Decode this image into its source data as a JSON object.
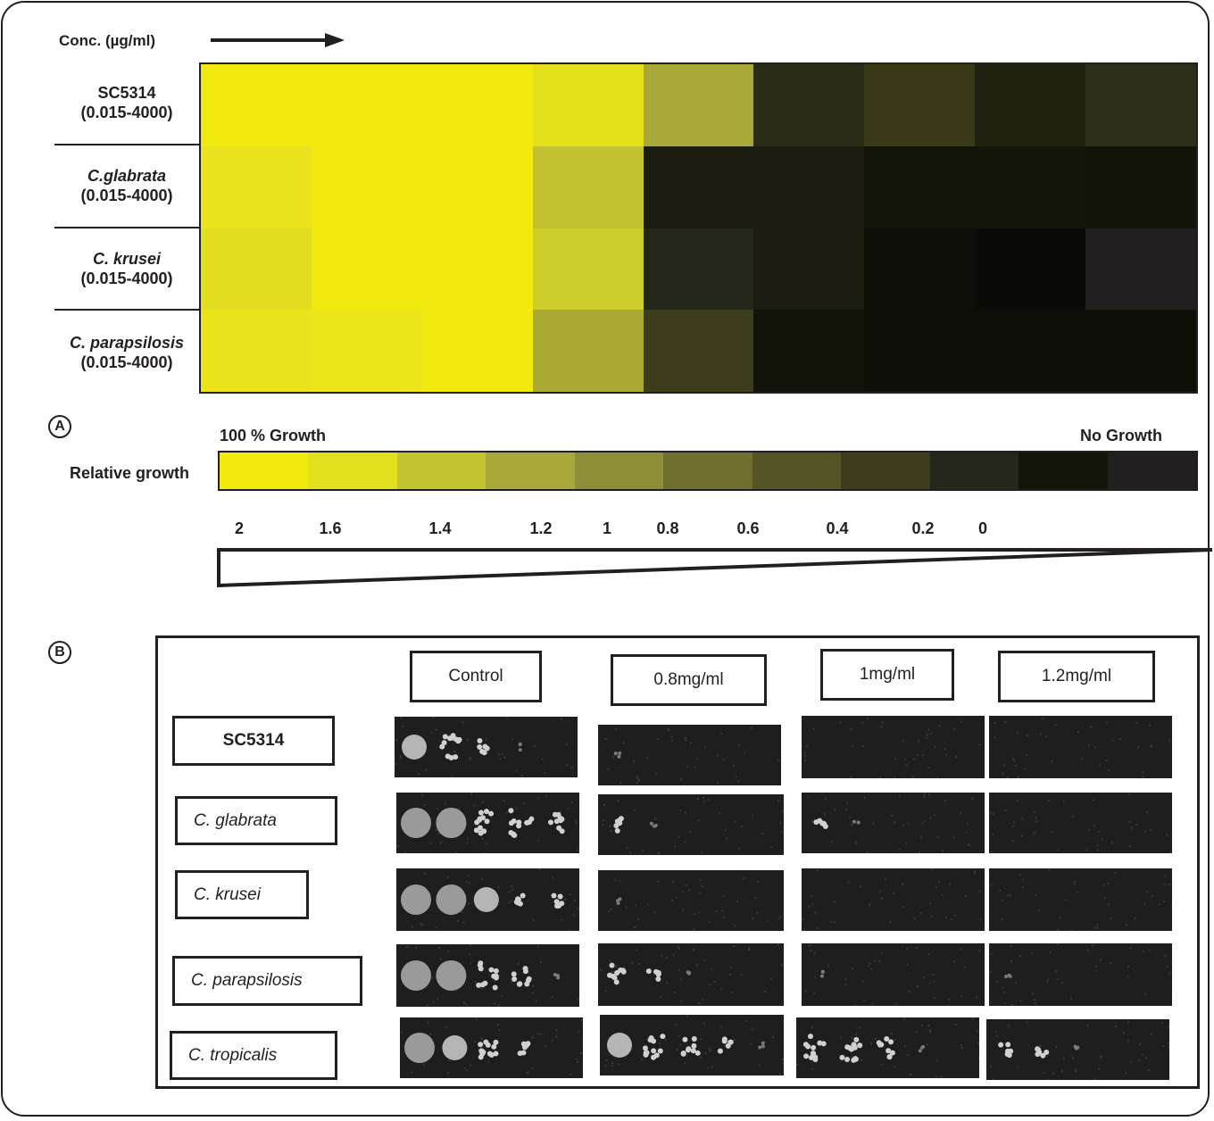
{
  "panel_a": {
    "label": "A",
    "conc_label": "Conc. (µg/ml)",
    "rows": [
      {
        "name": "SC5314",
        "italic": false,
        "range": "(0.015-4000)",
        "cells": [
          "#f2e90f",
          "#f2e90f",
          "#f2e90f",
          "#e5e01c",
          "#a9a93a",
          "#2a2c16",
          "#3a3a16",
          "#20210f",
          "#2d2f18"
        ]
      },
      {
        "name": "C.glabrata",
        "italic": true,
        "range": "(0.015-4000)",
        "cells": [
          "#e9e21c",
          "#f2e90f",
          "#f2e90f",
          "#c2c130",
          "#1c1d10",
          "#1c1d10",
          "#141509",
          "#141509",
          "#121309"
        ]
      },
      {
        "name": "C. krusei",
        "italic": true,
        "range": "(0.015-4000)",
        "cells": [
          "#e3dd1f",
          "#f2e90f",
          "#f2e90f",
          "#cccc2a",
          "#25271a",
          "#1c1d10",
          "#0e0f07",
          "#0a0a06",
          "#231f20"
        ]
      },
      {
        "name": "C. parapsilosis",
        "italic": true,
        "range": "(0.015-4000)",
        "cells": [
          "#ebe31a",
          "#ece51a",
          "#f2e90f",
          "#a9a933",
          "#3d3d1c",
          "#121309",
          "#0e0f07",
          "#0e0f07",
          "#0e0f07"
        ]
      }
    ],
    "legend": {
      "left_label": "100 % Growth",
      "right_label": "No Growth",
      "row_label": "Relative growth",
      "colors": [
        "#f2e90f",
        "#e1e01f",
        "#c4c430",
        "#a9a93a",
        "#8f8f3a",
        "#6f6f30",
        "#545426",
        "#3d3d1c",
        "#25271a",
        "#141509",
        "#231f20"
      ],
      "ticks": [
        "2",
        "1.6",
        "1.4",
        "1.2",
        "1",
        "0.8",
        "0.6",
        "0.4",
        "0.2",
        "0"
      ]
    }
  },
  "panel_b": {
    "label": "B",
    "columns": [
      "Control",
      "0.8mg/ml",
      "1mg/ml",
      "1.2mg/ml"
    ],
    "rows": [
      {
        "name": "SC5314",
        "bold": true,
        "growth": [
          [
            5,
            4,
            2,
            1
          ],
          [
            1,
            0,
            0,
            0
          ],
          [
            0,
            0,
            0,
            0
          ],
          [
            0,
            0,
            0,
            0
          ]
        ]
      },
      {
        "name": "C.  glabrata",
        "bold": false,
        "growth": [
          [
            6,
            6,
            4,
            4,
            3
          ],
          [
            2,
            1,
            0,
            0
          ],
          [
            2,
            1,
            0,
            0
          ],
          [
            0,
            0,
            0,
            0
          ]
        ]
      },
      {
        "name": "C.  krusei",
        "bold": false,
        "growth": [
          [
            6,
            6,
            5,
            2,
            2
          ],
          [
            1,
            0,
            0,
            0
          ],
          [
            0,
            0,
            0,
            0
          ],
          [
            0,
            0,
            0,
            0
          ]
        ]
      },
      {
        "name": "C.  parapsilosis",
        "bold": false,
        "growth": [
          [
            6,
            6,
            4,
            3,
            1
          ],
          [
            3,
            2,
            1,
            0
          ],
          [
            1,
            0,
            0,
            0
          ],
          [
            1,
            0,
            0,
            0
          ]
        ]
      },
      {
        "name": "C.  tropicalis",
        "bold": false,
        "growth": [
          [
            6,
            5,
            4,
            2,
            0
          ],
          [
            5,
            4,
            3,
            2,
            1
          ],
          [
            4,
            4,
            3,
            1
          ],
          [
            2,
            2,
            1,
            0
          ]
        ]
      }
    ]
  }
}
